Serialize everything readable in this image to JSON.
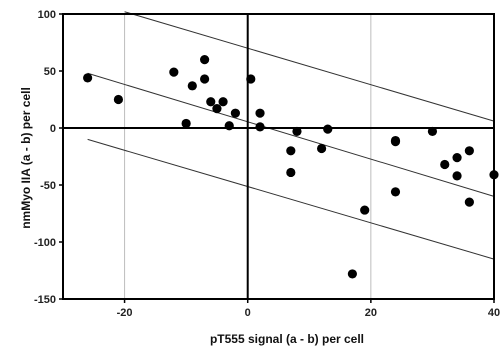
{
  "chart_data": {
    "type": "scatter",
    "title": "",
    "xlabel": "pT555 signal (a - b) per cell",
    "ylabel": "nmMyo IIA (a - b) per cell",
    "xlim": [
      -30,
      40
    ],
    "ylim": [
      -150,
      100
    ],
    "x_ticks": [
      -20,
      0,
      20,
      40
    ],
    "y_ticks": [
      100,
      50,
      0,
      -50,
      -100,
      -150
    ],
    "x_tick_labels": [
      "-20",
      "0",
      "20",
      "40"
    ],
    "y_tick_labels": [
      "100",
      "50",
      "0",
      "-50",
      "-100",
      "-150"
    ],
    "grid": "vertical lines at x ticks",
    "legend": "none",
    "marker_color": "#000000",
    "points": [
      {
        "x": -26.0,
        "y": 44
      },
      {
        "x": -21.0,
        "y": 25
      },
      {
        "x": -12.0,
        "y": 49
      },
      {
        "x": -10.0,
        "y": 4
      },
      {
        "x": -9.0,
        "y": 37
      },
      {
        "x": -7.0,
        "y": 60
      },
      {
        "x": -7.0,
        "y": 43
      },
      {
        "x": -6.0,
        "y": 23
      },
      {
        "x": -5.0,
        "y": 17
      },
      {
        "x": -4.0,
        "y": 23
      },
      {
        "x": -3.0,
        "y": 2
      },
      {
        "x": -2.0,
        "y": 13
      },
      {
        "x": 0.5,
        "y": 43
      },
      {
        "x": 2.0,
        "y": 13
      },
      {
        "x": 2.0,
        "y": 1
      },
      {
        "x": 7.0,
        "y": -20
      },
      {
        "x": 7.0,
        "y": -39
      },
      {
        "x": 8.0,
        "y": -3
      },
      {
        "x": 12.0,
        "y": -18
      },
      {
        "x": 13.0,
        "y": -1
      },
      {
        "x": 17.0,
        "y": -128
      },
      {
        "x": 19.0,
        "y": -72
      },
      {
        "x": 24.0,
        "y": -11
      },
      {
        "x": 24.0,
        "y": -12
      },
      {
        "x": 24.0,
        "y": -56
      },
      {
        "x": 30.0,
        "y": -3
      },
      {
        "x": 32.0,
        "y": -32
      },
      {
        "x": 34.0,
        "y": -26
      },
      {
        "x": 34.0,
        "y": -42
      },
      {
        "x": 36.0,
        "y": -20
      },
      {
        "x": 36.0,
        "y": -65
      },
      {
        "x": 40.0,
        "y": -41
      }
    ],
    "lines": [
      {
        "role": "upper-band",
        "x": [
          -20,
          40
        ],
        "y": [
          102,
          6
        ]
      },
      {
        "role": "fit",
        "x": [
          -26,
          40
        ],
        "y": [
          48,
          -60
        ]
      },
      {
        "role": "lower-band",
        "x": [
          -26,
          40
        ],
        "y": [
          -10,
          -115
        ]
      }
    ]
  }
}
